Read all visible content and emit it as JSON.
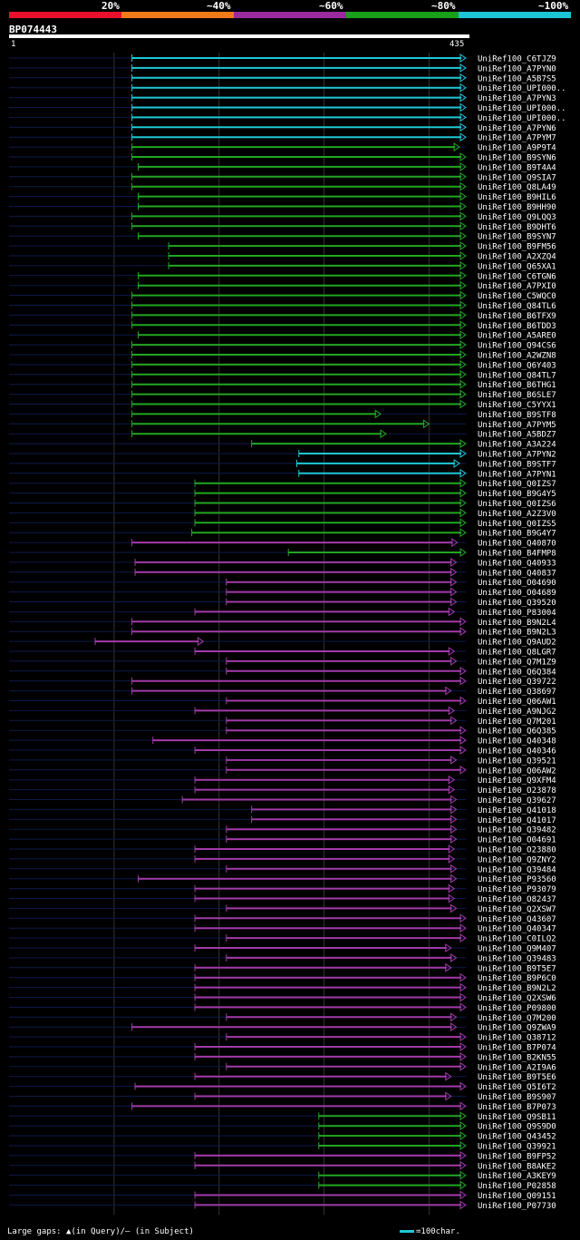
{
  "header": {
    "legend_labels": [
      "20%",
      "~40%",
      "~60%",
      "~80%",
      "~100%"
    ],
    "legend_colors": [
      "#e8102a",
      "#f07a18",
      "#9a2aa0",
      "#19a01a",
      "#1cc6d4"
    ],
    "query_id": "BP074443",
    "ruler_start": "1",
    "ruler_end": "435"
  },
  "footer": {
    "gaps_text": "Large gaps: ▲(in Query)/– (in Subject)",
    "scale_text": "=100char."
  },
  "chart_data": {
    "type": "alignment",
    "query_length": 435,
    "colors": {
      "cyan": "#1fc8d6",
      "green": "#22a622",
      "purple": "#a23aaa",
      "pink": "#d32a8a"
    },
    "hits": [
      {
        "label": "UniRef100_C6TJZ9",
        "start": 117,
        "end": 435,
        "color": "cyan"
      },
      {
        "label": "UniRef100_A7PYN0",
        "start": 117,
        "end": 435,
        "color": "cyan"
      },
      {
        "label": "UniRef100_A5B7S5",
        "start": 117,
        "end": 435,
        "color": "cyan"
      },
      {
        "label": "UniRef100_UPI000..",
        "start": 117,
        "end": 435,
        "color": "cyan"
      },
      {
        "label": "UniRef100_A7PYN3",
        "start": 117,
        "end": 435,
        "color": "cyan"
      },
      {
        "label": "UniRef100_UPI000..",
        "start": 117,
        "end": 435,
        "color": "cyan"
      },
      {
        "label": "UniRef100_UPI000..",
        "start": 117,
        "end": 435,
        "color": "cyan"
      },
      {
        "label": "UniRef100_A7PYN6",
        "start": 117,
        "end": 435,
        "color": "cyan"
      },
      {
        "label": "UniRef100_A7PYM7",
        "start": 117,
        "end": 435,
        "color": "cyan"
      },
      {
        "label": "UniRef100_A9P9T4",
        "start": 117,
        "end": 429,
        "color": "green"
      },
      {
        "label": "UniRef100_B9SYN6",
        "start": 117,
        "end": 435,
        "color": "green"
      },
      {
        "label": "UniRef100_B9T4A4",
        "start": 123,
        "end": 435,
        "color": "green"
      },
      {
        "label": "UniRef100_Q9SIA7",
        "start": 117,
        "end": 435,
        "color": "green"
      },
      {
        "label": "UniRef100_Q8LA49",
        "start": 117,
        "end": 435,
        "color": "green"
      },
      {
        "label": "UniRef100_B9HIL6",
        "start": 123,
        "end": 435,
        "color": "green"
      },
      {
        "label": "UniRef100_B9HH90",
        "start": 123,
        "end": 435,
        "color": "green"
      },
      {
        "label": "UniRef100_Q9LQQ3",
        "start": 117,
        "end": 435,
        "color": "green"
      },
      {
        "label": "UniRef100_B9DHT6",
        "start": 117,
        "end": 435,
        "color": "green"
      },
      {
        "label": "UniRef100_B9SYN7",
        "start": 123,
        "end": 435,
        "color": "green"
      },
      {
        "label": "UniRef100_B9FM56",
        "start": 152,
        "end": 435,
        "color": "green"
      },
      {
        "label": "UniRef100_A2XZQ4",
        "start": 152,
        "end": 435,
        "color": "green"
      },
      {
        "label": "UniRef100_Q65XA1",
        "start": 152,
        "end": 435,
        "color": "green"
      },
      {
        "label": "UniRef100_C6TGN6",
        "start": 123,
        "end": 435,
        "color": "green"
      },
      {
        "label": "UniRef100_A7PXI0",
        "start": 123,
        "end": 435,
        "color": "green"
      },
      {
        "label": "UniRef100_C5WQC0",
        "start": 117,
        "end": 435,
        "color": "green"
      },
      {
        "label": "UniRef100_Q84TL6",
        "start": 117,
        "end": 435,
        "color": "green"
      },
      {
        "label": "UniRef100_B6TFX9",
        "start": 117,
        "end": 435,
        "color": "green"
      },
      {
        "label": "UniRef100_B6TDD3",
        "start": 117,
        "end": 435,
        "color": "green"
      },
      {
        "label": "UniRef100_A5ARE0",
        "start": 123,
        "end": 435,
        "color": "green"
      },
      {
        "label": "UniRef100_Q94CS6",
        "start": 117,
        "end": 435,
        "color": "green"
      },
      {
        "label": "UniRef100_A2WZN8",
        "start": 117,
        "end": 435,
        "color": "green"
      },
      {
        "label": "UniRef100_Q6Y403",
        "start": 117,
        "end": 435,
        "color": "green"
      },
      {
        "label": "UniRef100_Q84TL7",
        "start": 117,
        "end": 435,
        "color": "green"
      },
      {
        "label": "UniRef100_B6THG1",
        "start": 117,
        "end": 435,
        "color": "green"
      },
      {
        "label": "UniRef100_B6SLE7",
        "start": 117,
        "end": 435,
        "color": "green"
      },
      {
        "label": "UniRef100_C5YYX1",
        "start": 117,
        "end": 435,
        "color": "green"
      },
      {
        "label": "UniRef100_B9STF8",
        "start": 117,
        "end": 354,
        "color": "green"
      },
      {
        "label": "UniRef100_A7PYM5",
        "start": 117,
        "end": 400,
        "color": "green"
      },
      {
        "label": "UniRef100_A5BDZ7",
        "start": 117,
        "end": 359,
        "color": "green"
      },
      {
        "label": "UniRef100_A3A224",
        "start": 231,
        "end": 435,
        "color": "green"
      },
      {
        "label": "UniRef100_A7PYN2",
        "start": 276,
        "end": 435,
        "color": "cyan"
      },
      {
        "label": "UniRef100_B9STF7",
        "start": 274,
        "end": 429,
        "color": "cyan"
      },
      {
        "label": "UniRef100_A7PYN1",
        "start": 276,
        "end": 435,
        "color": "cyan"
      },
      {
        "label": "UniRef100_Q0IZS7",
        "start": 177,
        "end": 435,
        "color": "green"
      },
      {
        "label": "UniRef100_B9G4Y5",
        "start": 177,
        "end": 435,
        "color": "green"
      },
      {
        "label": "UniRef100_Q0IZS6",
        "start": 177,
        "end": 435,
        "color": "green"
      },
      {
        "label": "UniRef100_A2Z3V0",
        "start": 177,
        "end": 435,
        "color": "green"
      },
      {
        "label": "UniRef100_Q0IZS5",
        "start": 177,
        "end": 435,
        "color": "green"
      },
      {
        "label": "UniRef100_B9G4Y7",
        "start": 174,
        "end": 435,
        "color": "green"
      },
      {
        "label": "UniRef100_Q40870",
        "start": 117,
        "end": 427,
        "color": "purple"
      },
      {
        "label": "UniRef100_B4FMP8",
        "start": 266,
        "end": 435,
        "color": "green"
      },
      {
        "label": "UniRef100_Q40933",
        "start": 120,
        "end": 426,
        "color": "purple"
      },
      {
        "label": "UniRef100_Q40837",
        "start": 120,
        "end": 426,
        "color": "purple"
      },
      {
        "label": "UniRef100_O04690",
        "start": 207,
        "end": 426,
        "color": "purple"
      },
      {
        "label": "UniRef100_O04689",
        "start": 207,
        "end": 426,
        "color": "purple"
      },
      {
        "label": "UniRef100_Q39520",
        "start": 207,
        "end": 426,
        "color": "purple"
      },
      {
        "label": "UniRef100_P83004",
        "start": 177,
        "end": 424,
        "color": "purple"
      },
      {
        "label": "UniRef100_B9N2L4",
        "start": 117,
        "end": 435,
        "color": "purple"
      },
      {
        "label": "UniRef100_B9N2L3",
        "start": 117,
        "end": 435,
        "color": "purple"
      },
      {
        "label": "UniRef100_Q9AUD2",
        "start": 82,
        "end": 185,
        "color": "purple"
      },
      {
        "label": "UniRef100_Q8LGR7",
        "start": 177,
        "end": 424,
        "color": "purple"
      },
      {
        "label": "UniRef100_Q7M1Z9",
        "start": 207,
        "end": 426,
        "color": "purple"
      },
      {
        "label": "UniRef100_Q6Q384",
        "start": 207,
        "end": 435,
        "color": "purple"
      },
      {
        "label": "UniRef100_Q39722",
        "start": 117,
        "end": 435,
        "color": "purple"
      },
      {
        "label": "UniRef100_Q38697",
        "start": 117,
        "end": 421,
        "color": "purple"
      },
      {
        "label": "UniRef100_Q06AW1",
        "start": 207,
        "end": 435,
        "color": "purple"
      },
      {
        "label": "UniRef100_A9NJG2",
        "start": 177,
        "end": 424,
        "color": "purple"
      },
      {
        "label": "UniRef100_Q7M201",
        "start": 207,
        "end": 426,
        "color": "purple"
      },
      {
        "label": "UniRef100_Q6Q385",
        "start": 207,
        "end": 435,
        "color": "purple"
      },
      {
        "label": "UniRef100_Q40348",
        "start": 137,
        "end": 435,
        "color": "purple"
      },
      {
        "label": "UniRef100_Q40346",
        "start": 177,
        "end": 435,
        "color": "purple"
      },
      {
        "label": "UniRef100_Q39521",
        "start": 207,
        "end": 426,
        "color": "purple"
      },
      {
        "label": "UniRef100_Q06AW2",
        "start": 207,
        "end": 435,
        "color": "purple"
      },
      {
        "label": "UniRef100_Q9XFM4",
        "start": 177,
        "end": 424,
        "color": "purple"
      },
      {
        "label": "UniRef100_O23878",
        "start": 177,
        "end": 424,
        "color": "purple"
      },
      {
        "label": "UniRef100_Q39627",
        "start": 165,
        "end": 426,
        "color": "purple"
      },
      {
        "label": "UniRef100_Q41018",
        "start": 231,
        "end": 426,
        "color": "purple"
      },
      {
        "label": "UniRef100_Q41017",
        "start": 231,
        "end": 426,
        "color": "purple"
      },
      {
        "label": "UniRef100_Q39482",
        "start": 207,
        "end": 426,
        "color": "purple"
      },
      {
        "label": "UniRef100_O04691",
        "start": 207,
        "end": 426,
        "color": "purple"
      },
      {
        "label": "UniRef100_O23880",
        "start": 177,
        "end": 424,
        "color": "purple"
      },
      {
        "label": "UniRef100_Q9ZNY2",
        "start": 177,
        "end": 424,
        "color": "purple"
      },
      {
        "label": "UniRef100_Q39484",
        "start": 207,
        "end": 426,
        "color": "purple"
      },
      {
        "label": "UniRef100_P93560",
        "start": 123,
        "end": 426,
        "color": "purple"
      },
      {
        "label": "UniRef100_P93079",
        "start": 177,
        "end": 424,
        "color": "purple"
      },
      {
        "label": "UniRef100_O82437",
        "start": 177,
        "end": 424,
        "color": "purple"
      },
      {
        "label": "UniRef100_Q2XSW7",
        "start": 207,
        "end": 426,
        "color": "purple"
      },
      {
        "label": "UniRef100_Q43607",
        "start": 177,
        "end": 435,
        "color": "purple"
      },
      {
        "label": "UniRef100_Q40347",
        "start": 177,
        "end": 435,
        "color": "purple"
      },
      {
        "label": "UniRef100_C0ILQ2",
        "start": 207,
        "end": 435,
        "color": "purple"
      },
      {
        "label": "UniRef100_Q9M407",
        "start": 177,
        "end": 421,
        "color": "purple"
      },
      {
        "label": "UniRef100_Q39483",
        "start": 207,
        "end": 426,
        "color": "purple"
      },
      {
        "label": "UniRef100_B9T5E7",
        "start": 177,
        "end": 421,
        "color": "purple"
      },
      {
        "label": "UniRef100_B9P6C0",
        "start": 177,
        "end": 435,
        "color": "purple"
      },
      {
        "label": "UniRef100_B9N2L2",
        "start": 177,
        "end": 435,
        "color": "purple"
      },
      {
        "label": "UniRef100_Q2XSW6",
        "start": 177,
        "end": 435,
        "color": "purple"
      },
      {
        "label": "UniRef100_P09800",
        "start": 177,
        "end": 435,
        "color": "purple"
      },
      {
        "label": "UniRef100_Q7M200",
        "start": 207,
        "end": 426,
        "color": "purple"
      },
      {
        "label": "UniRef100_Q9ZWA9",
        "start": 117,
        "end": 426,
        "color": "purple"
      },
      {
        "label": "UniRef100_Q38712",
        "start": 207,
        "end": 435,
        "color": "purple"
      },
      {
        "label": "UniRef100_B7P074",
        "start": 177,
        "end": 435,
        "color": "purple"
      },
      {
        "label": "UniRef100_B2KN55",
        "start": 177,
        "end": 435,
        "color": "purple"
      },
      {
        "label": "UniRef100_A2I9A6",
        "start": 207,
        "end": 435,
        "color": "purple"
      },
      {
        "label": "UniRef100_B9T5E6",
        "start": 177,
        "end": 421,
        "color": "purple"
      },
      {
        "label": "UniRef100_Q5I6T2",
        "start": 120,
        "end": 435,
        "color": "purple"
      },
      {
        "label": "UniRef100_B9S907",
        "start": 177,
        "end": 421,
        "color": "purple"
      },
      {
        "label": "UniRef100_B7P073",
        "start": 117,
        "end": 435,
        "color": "purple"
      },
      {
        "label": "UniRef100_Q9SB11",
        "start": 295,
        "end": 435,
        "color": "green"
      },
      {
        "label": "UniRef100_Q9S9D0",
        "start": 295,
        "end": 435,
        "color": "green"
      },
      {
        "label": "UniRef100_Q43452",
        "start": 295,
        "end": 435,
        "color": "green"
      },
      {
        "label": "UniRef100_Q39921",
        "start": 295,
        "end": 435,
        "color": "green"
      },
      {
        "label": "UniRef100_B9FP52",
        "start": 177,
        "end": 435,
        "color": "purple"
      },
      {
        "label": "UniRef100_B8AKE2",
        "start": 177,
        "end": 435,
        "color": "purple"
      },
      {
        "label": "UniRef100_A3KEY9",
        "start": 295,
        "end": 435,
        "color": "green"
      },
      {
        "label": "UniRef100_P02858",
        "start": 295,
        "end": 435,
        "color": "green"
      },
      {
        "label": "UniRef100_Q09151",
        "start": 177,
        "end": 435,
        "color": "purple"
      },
      {
        "label": "UniRef100_P07730",
        "start": 177,
        "end": 435,
        "color": "purple"
      }
    ]
  }
}
